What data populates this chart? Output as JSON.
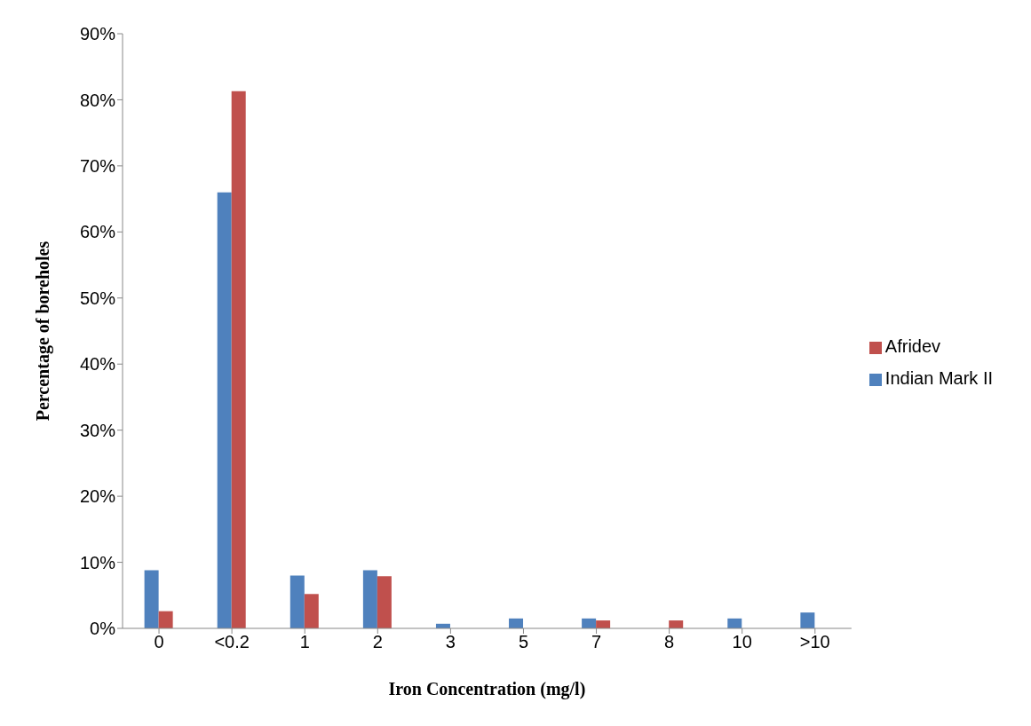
{
  "chart_data": {
    "type": "bar",
    "xlabel": "Iron Concentration (mg/l)",
    "ylabel": "Percentage of boreholes",
    "categories": [
      "0",
      "<0.2",
      "1",
      "2",
      "3",
      "5",
      "7",
      "8",
      "10",
      ">10"
    ],
    "series": [
      {
        "name": "Indian Mark II",
        "color": "#4f81bd",
        "values": [
          8.8,
          66.0,
          8.0,
          8.8,
          0.7,
          1.5,
          1.5,
          null,
          1.5,
          2.4
        ]
      },
      {
        "name": "Afridev",
        "color": "#c0504d",
        "values": [
          2.6,
          81.3,
          5.2,
          7.9,
          null,
          null,
          1.2,
          1.2,
          null,
          null
        ]
      }
    ],
    "ylim": [
      0,
      90
    ],
    "yticks": [
      {
        "value": 0,
        "label": "0%"
      },
      {
        "value": 10,
        "label": "10%"
      },
      {
        "value": 20,
        "label": "20%"
      },
      {
        "value": 30,
        "label": "30%"
      },
      {
        "value": 40,
        "label": "40%"
      },
      {
        "value": 50,
        "label": "50%"
      },
      {
        "value": 60,
        "label": "60%"
      },
      {
        "value": 70,
        "label": "70%"
      },
      {
        "value": 80,
        "label": "80%"
      },
      {
        "value": 90,
        "label": "90%"
      }
    ],
    "grid": false,
    "legend": "right"
  }
}
